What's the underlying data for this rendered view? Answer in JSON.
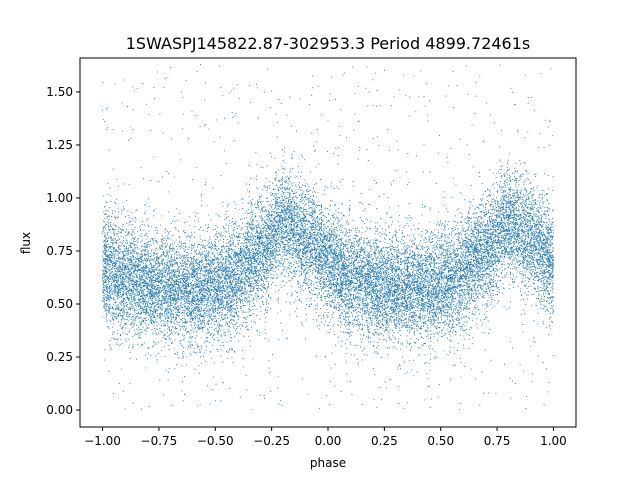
{
  "chart_data": {
    "type": "scatter",
    "title": "1SWASPJ145822.87-302953.3 Period 4899.72461s",
    "xlabel": "phase",
    "ylabel": "flux",
    "xlim": [
      -1.1,
      1.1
    ],
    "ylim": [
      -0.08,
      1.66
    ],
    "xticks": [
      -1.0,
      -0.75,
      -0.5,
      -0.25,
      0.0,
      0.25,
      0.5,
      0.75,
      1.0
    ],
    "xtick_labels": [
      "−1.00",
      "−0.75",
      "−0.50",
      "−0.25",
      "0.00",
      "0.25",
      "0.50",
      "0.75",
      "1.00"
    ],
    "yticks": [
      0.0,
      0.25,
      0.5,
      0.75,
      1.0,
      1.25,
      1.5
    ],
    "ytick_labels": [
      "0.00",
      "0.25",
      "0.50",
      "0.75",
      "1.00",
      "1.25",
      "1.50"
    ],
    "grid": false,
    "marker_color": "#1f77b4",
    "series": [
      {
        "phase_range": [
          -1.0,
          1.0
        ],
        "approx_points": 20000,
        "profile_phase": [
          -1.0,
          -0.9,
          -0.75,
          -0.6,
          -0.45,
          -0.3,
          -0.2,
          -0.1,
          0.0,
          0.1,
          0.25,
          0.4,
          0.55,
          0.7,
          0.8,
          0.9,
          1.0
        ],
        "profile_mean_flux": [
          0.66,
          0.62,
          0.58,
          0.57,
          0.59,
          0.74,
          0.88,
          0.8,
          0.7,
          0.62,
          0.58,
          0.57,
          0.6,
          0.75,
          0.88,
          0.8,
          0.7
        ],
        "flux_scatter_sigma": 0.13
      }
    ]
  }
}
